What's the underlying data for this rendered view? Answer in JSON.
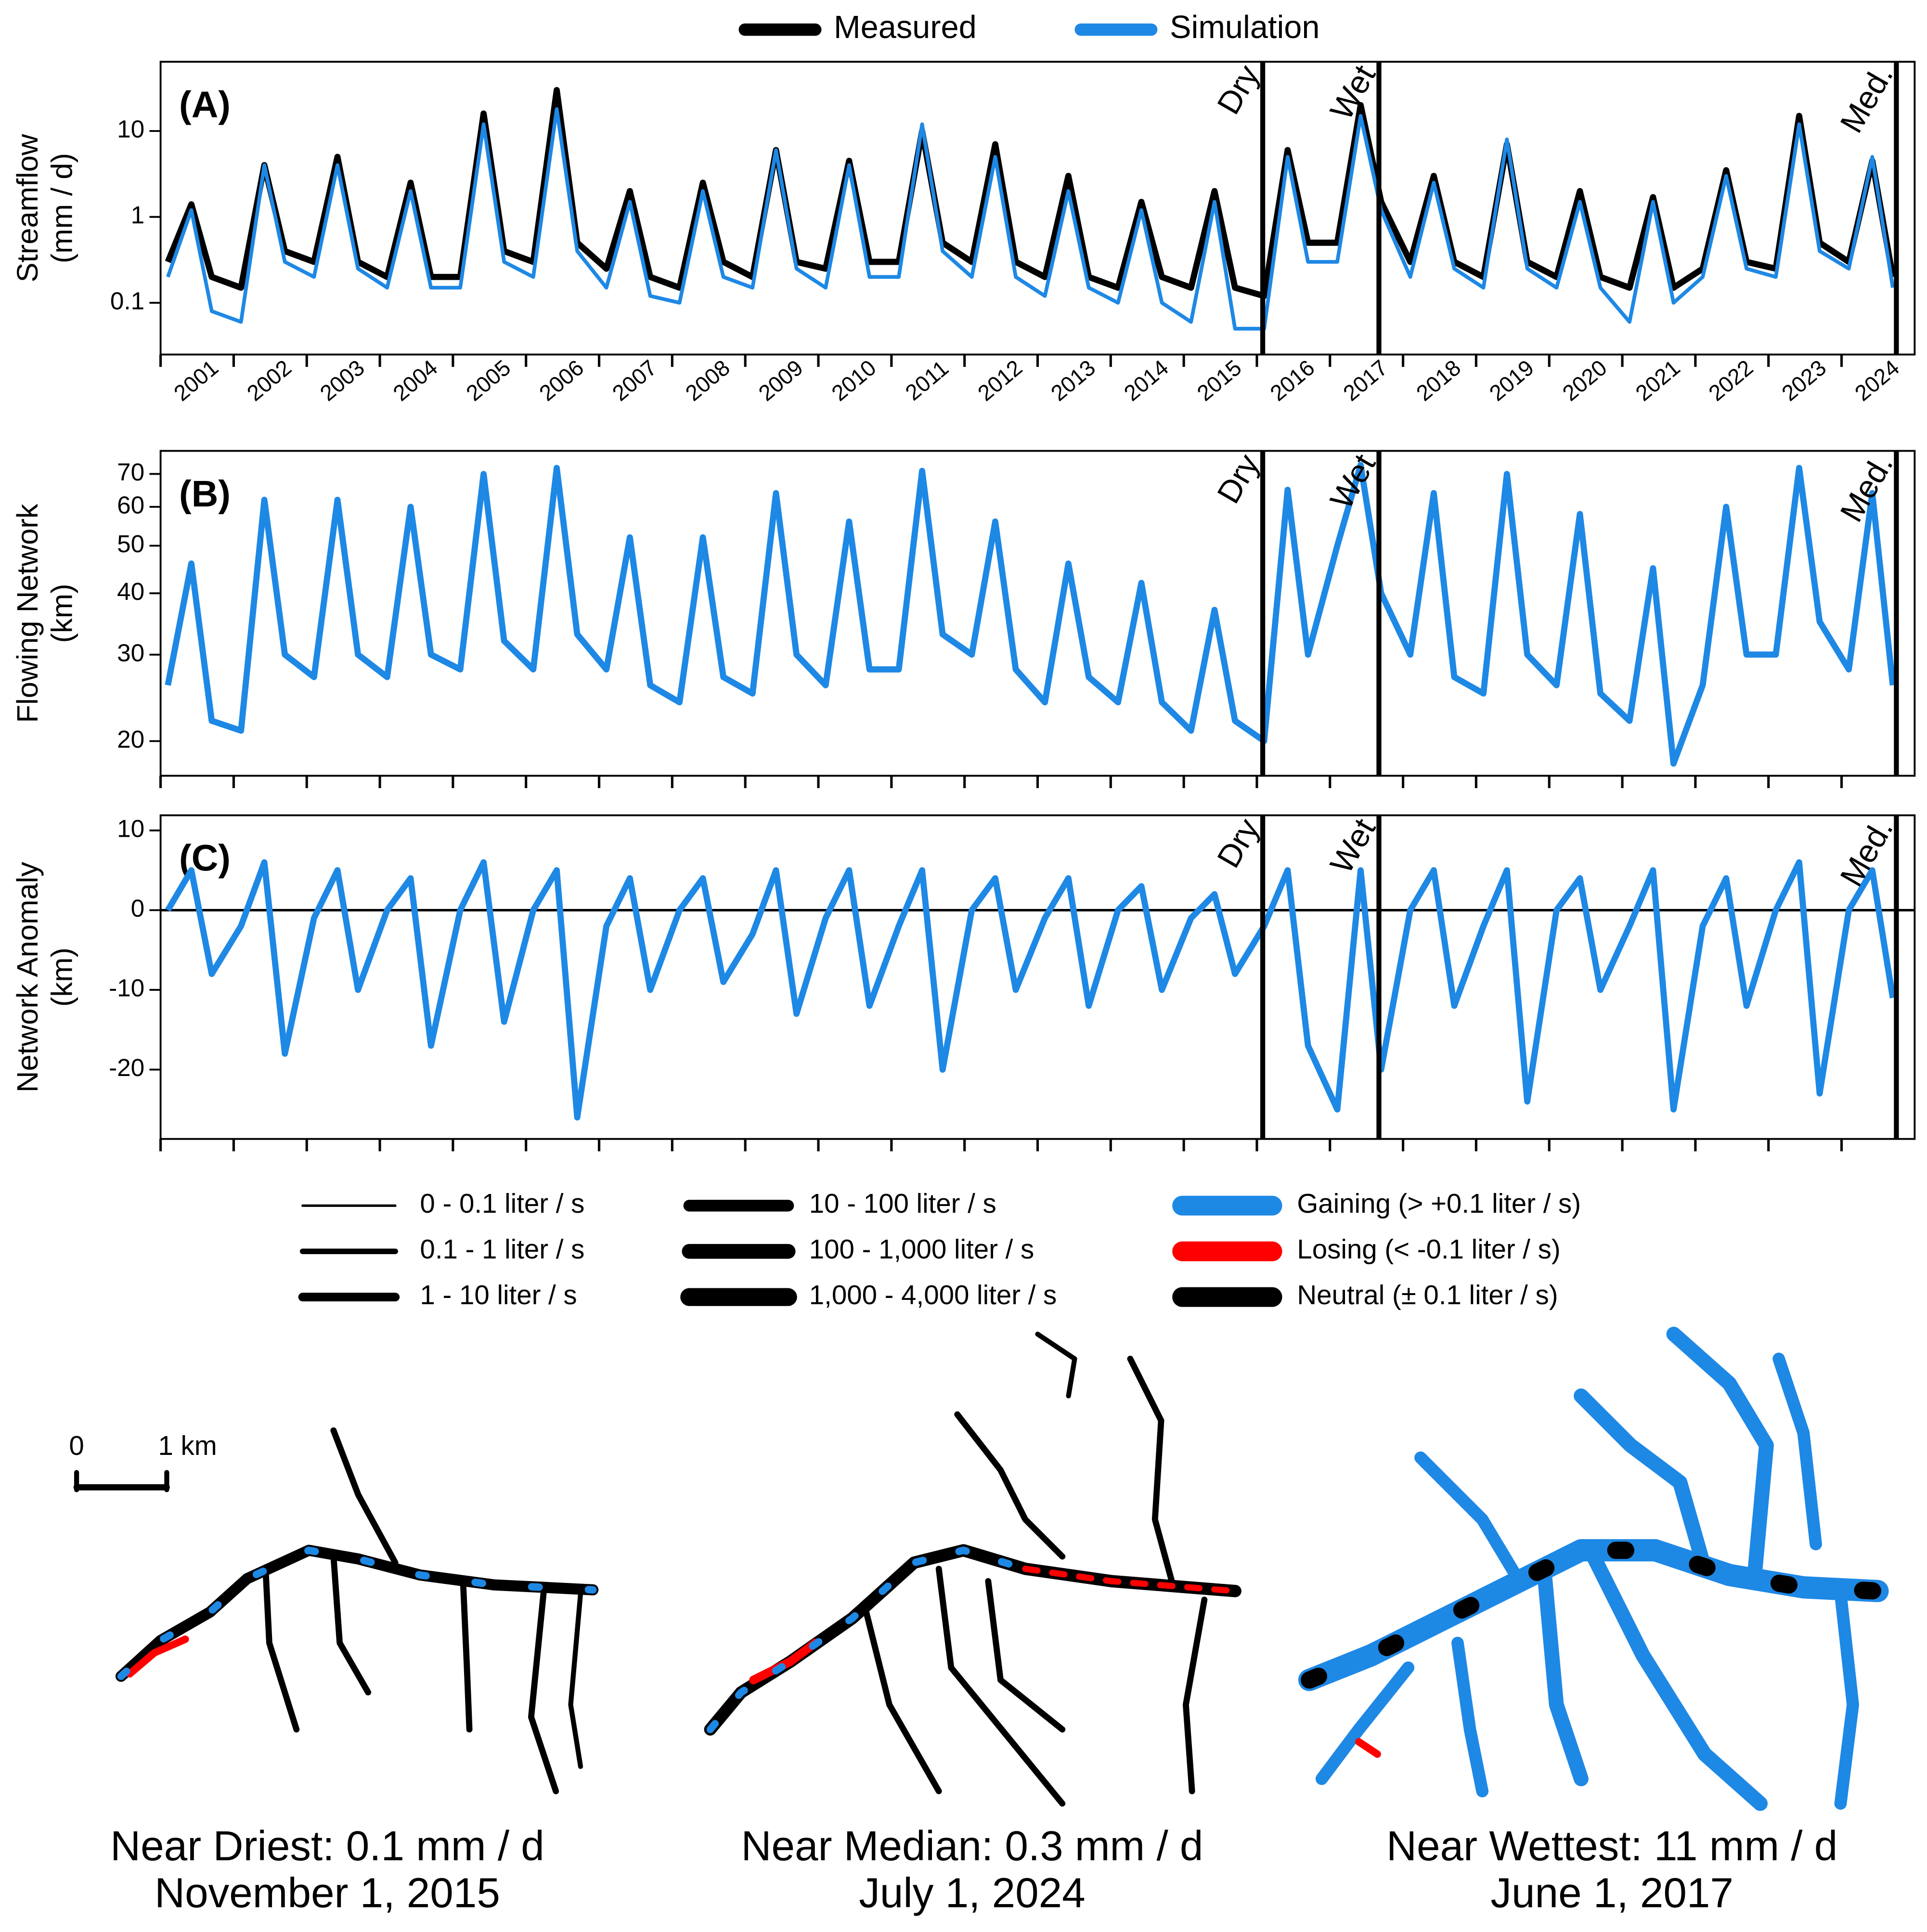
{
  "chart_data": [
    {
      "type": "line",
      "ylog": true,
      "panel_label": "(A)",
      "ylabel": [
        "Streamflow",
        "(mm / d)"
      ],
      "xlim": [
        2000.75,
        2024.75
      ],
      "ylim": [
        0.025,
        64
      ],
      "yticks": [
        {
          "value": 10,
          "label": "10"
        },
        {
          "value": 1,
          "label": "1"
        },
        {
          "value": 0.1,
          "label": "0.1"
        }
      ],
      "xtick_marks": [
        2000.75,
        2001.75,
        2002.75,
        2003.75,
        2004.75,
        2005.75,
        2006.75,
        2007.75,
        2008.75,
        2009.75,
        2010.75,
        2011.75,
        2012.75,
        2013.75,
        2014.75,
        2015.75,
        2016.75,
        2017.75,
        2018.75,
        2019.75,
        2020.75,
        2021.75,
        2022.75,
        2023.75
      ],
      "xticks": [
        {
          "value": 2001.25,
          "label": "2001"
        },
        {
          "value": 2002.25,
          "label": "2002"
        },
        {
          "value": 2003.25,
          "label": "2003"
        },
        {
          "value": 2004.25,
          "label": "2004"
        },
        {
          "value": 2005.25,
          "label": "2005"
        },
        {
          "value": 2006.25,
          "label": "2006"
        },
        {
          "value": 2007.25,
          "label": "2007"
        },
        {
          "value": 2008.25,
          "label": "2008"
        },
        {
          "value": 2009.25,
          "label": "2009"
        },
        {
          "value": 2010.25,
          "label": "2010"
        },
        {
          "value": 2011.25,
          "label": "2011"
        },
        {
          "value": 2012.25,
          "label": "2012"
        },
        {
          "value": 2013.25,
          "label": "2013"
        },
        {
          "value": 2014.25,
          "label": "2014"
        },
        {
          "value": 2015.25,
          "label": "2015"
        },
        {
          "value": 2016.25,
          "label": "2016"
        },
        {
          "value": 2017.25,
          "label": "2017"
        },
        {
          "value": 2018.25,
          "label": "2018"
        },
        {
          "value": 2019.25,
          "label": "2019"
        },
        {
          "value": 2020.25,
          "label": "2020"
        },
        {
          "value": 2021.25,
          "label": "2021"
        },
        {
          "value": 2022.25,
          "label": "2022"
        },
        {
          "value": 2023.25,
          "label": "2023"
        },
        {
          "value": 2024.25,
          "label": "2024"
        }
      ],
      "markers": [
        {
          "label": "Dry",
          "x": 2015.83
        },
        {
          "label": "Wet",
          "x": 2017.42
        },
        {
          "label": "Med.",
          "x": 2024.5
        }
      ],
      "x": [
        2000.85,
        2001.17,
        2001.45,
        2001.85,
        2002.17,
        2002.45,
        2002.85,
        2003.17,
        2003.45,
        2003.85,
        2004.17,
        2004.45,
        2004.85,
        2005.17,
        2005.45,
        2005.85,
        2006.17,
        2006.45,
        2006.85,
        2007.17,
        2007.45,
        2007.85,
        2008.17,
        2008.45,
        2008.85,
        2009.17,
        2009.45,
        2009.85,
        2010.17,
        2010.45,
        2010.85,
        2011.17,
        2011.45,
        2011.85,
        2012.17,
        2012.45,
        2012.85,
        2013.17,
        2013.45,
        2013.85,
        2014.17,
        2014.45,
        2014.85,
        2015.17,
        2015.45,
        2015.85,
        2016.17,
        2016.45,
        2016.85,
        2017.17,
        2017.45,
        2017.85,
        2018.17,
        2018.45,
        2018.85,
        2019.17,
        2019.45,
        2019.85,
        2020.17,
        2020.45,
        2020.85,
        2021.17,
        2021.45,
        2021.85,
        2022.17,
        2022.45,
        2022.85,
        2023.17,
        2023.45,
        2023.85,
        2024.17,
        2024.45
      ],
      "series": [
        {
          "name": "Measured",
          "color": "#000000",
          "values": [
            0.3,
            1.4,
            0.2,
            0.15,
            4,
            0.4,
            0.3,
            5,
            0.3,
            0.2,
            2.5,
            0.2,
            0.2,
            16,
            0.4,
            0.3,
            30,
            0.5,
            0.25,
            2,
            0.2,
            0.15,
            2.5,
            0.3,
            0.2,
            6,
            0.3,
            0.25,
            4.5,
            0.3,
            0.3,
            10,
            0.5,
            0.3,
            7,
            0.3,
            0.2,
            3,
            0.2,
            0.15,
            1.5,
            0.2,
            0.15,
            2,
            0.15,
            0.12,
            6,
            0.5,
            0.5,
            20,
            1.5,
            0.3,
            3,
            0.3,
            0.2,
            7,
            0.3,
            0.2,
            2,
            0.2,
            0.15,
            1.7,
            0.15,
            0.25,
            3.5,
            0.3,
            0.25,
            15,
            0.5,
            0.3,
            4.5,
            0.2
          ]
        },
        {
          "name": "Simulation",
          "color": "#1e88e5",
          "values": [
            0.2,
            1.2,
            0.08,
            0.06,
            4,
            0.3,
            0.2,
            4,
            0.25,
            0.15,
            2,
            0.15,
            0.15,
            12,
            0.3,
            0.2,
            18,
            0.4,
            0.15,
            1.5,
            0.12,
            0.1,
            2,
            0.2,
            0.15,
            6,
            0.25,
            0.15,
            4,
            0.2,
            0.2,
            12,
            0.4,
            0.2,
            5,
            0.2,
            0.12,
            2,
            0.15,
            0.1,
            1.2,
            0.1,
            0.06,
            1.5,
            0.05,
            0.05,
            5,
            0.3,
            0.3,
            15,
            1.2,
            0.2,
            2.5,
            0.25,
            0.15,
            8,
            0.25,
            0.15,
            1.5,
            0.15,
            0.06,
            1.5,
            0.1,
            0.2,
            3,
            0.25,
            0.2,
            12,
            0.4,
            0.25,
            5,
            0.15
          ]
        }
      ]
    },
    {
      "type": "line",
      "ylog": true,
      "panel_label": "(B)",
      "ylabel": [
        "Flowing Network",
        "(km)"
      ],
      "xlim": [
        2000.75,
        2024.75
      ],
      "ylim": [
        17,
        78
      ],
      "yticks": [
        20,
        30,
        40,
        50,
        60,
        70
      ],
      "xtick_marks": [
        2000.75,
        2001.75,
        2002.75,
        2003.75,
        2004.75,
        2005.75,
        2006.75,
        2007.75,
        2008.75,
        2009.75,
        2010.75,
        2011.75,
        2012.75,
        2013.75,
        2014.75,
        2015.75,
        2016.75,
        2017.75,
        2018.75,
        2019.75,
        2020.75,
        2021.75,
        2022.75,
        2023.75
      ],
      "markers": [
        {
          "label": "Dry",
          "x": 2015.83
        },
        {
          "label": "Wet",
          "x": 2017.42
        },
        {
          "label": "Med.",
          "x": 2024.5
        }
      ],
      "x": [
        2000.85,
        2001.17,
        2001.45,
        2001.85,
        2002.17,
        2002.45,
        2002.85,
        2003.17,
        2003.45,
        2003.85,
        2004.17,
        2004.45,
        2004.85,
        2005.17,
        2005.45,
        2005.85,
        2006.17,
        2006.45,
        2006.85,
        2007.17,
        2007.45,
        2007.85,
        2008.17,
        2008.45,
        2008.85,
        2009.17,
        2009.45,
        2009.85,
        2010.17,
        2010.45,
        2010.85,
        2011.17,
        2011.45,
        2011.85,
        2012.17,
        2012.45,
        2012.85,
        2013.17,
        2013.45,
        2013.85,
        2014.17,
        2014.45,
        2014.85,
        2015.17,
        2015.45,
        2015.85,
        2016.17,
        2016.45,
        2016.85,
        2017.17,
        2017.45,
        2017.85,
        2018.17,
        2018.45,
        2018.85,
        2019.17,
        2019.45,
        2019.85,
        2020.17,
        2020.45,
        2020.85,
        2021.17,
        2021.45,
        2021.85,
        2022.17,
        2022.45,
        2022.85,
        2023.17,
        2023.45,
        2023.85,
        2024.17,
        2024.45
      ],
      "series": [
        {
          "color": "#1e88e5",
          "values": [
            26,
            46,
            22,
            21,
            62,
            30,
            27,
            62,
            30,
            27,
            60,
            30,
            28,
            70,
            32,
            28,
            72,
            33,
            28,
            52,
            26,
            24,
            52,
            27,
            25,
            64,
            30,
            26,
            56,
            28,
            28,
            71,
            33,
            30,
            56,
            28,
            24,
            46,
            27,
            24,
            42,
            24,
            21,
            37,
            22,
            20,
            65,
            30,
            50,
            73,
            40,
            30,
            64,
            27,
            25,
            70,
            30,
            26,
            58,
            25,
            22,
            45,
            18,
            26,
            60,
            30,
            30,
            72,
            35,
            28,
            64,
            26
          ]
        }
      ]
    },
    {
      "type": "line",
      "ylog": false,
      "panel_label": "(C)",
      "ylabel": [
        "Network Anomaly",
        "(km)"
      ],
      "xlim": [
        2000.75,
        2024.75
      ],
      "ylim": [
        -28.7,
        11.9
      ],
      "yticks": [
        10,
        0,
        -10,
        -20
      ],
      "xtick_marks": [
        2000.75,
        2001.75,
        2002.75,
        2003.75,
        2004.75,
        2005.75,
        2006.75,
        2007.75,
        2008.75,
        2009.75,
        2010.75,
        2011.75,
        2012.75,
        2013.75,
        2014.75,
        2015.75,
        2016.75,
        2017.75,
        2018.75,
        2019.75,
        2020.75,
        2021.75,
        2022.75,
        2023.75
      ],
      "markers": [
        {
          "label": "Dry",
          "x": 2015.83
        },
        {
          "label": "Wet",
          "x": 2017.42
        },
        {
          "label": "Med.",
          "x": 2024.5
        }
      ],
      "x": [
        2000.85,
        2001.17,
        2001.45,
        2001.85,
        2002.17,
        2002.45,
        2002.85,
        2003.17,
        2003.45,
        2003.85,
        2004.17,
        2004.45,
        2004.85,
        2005.17,
        2005.45,
        2005.85,
        2006.17,
        2006.45,
        2006.85,
        2007.17,
        2007.45,
        2007.85,
        2008.17,
        2008.45,
        2008.85,
        2009.17,
        2009.45,
        2009.85,
        2010.17,
        2010.45,
        2010.85,
        2011.17,
        2011.45,
        2011.85,
        2012.17,
        2012.45,
        2012.85,
        2013.17,
        2013.45,
        2013.85,
        2014.17,
        2014.45,
        2014.85,
        2015.17,
        2015.45,
        2015.85,
        2016.17,
        2016.45,
        2016.85,
        2017.17,
        2017.45,
        2017.85,
        2018.17,
        2018.45,
        2018.85,
        2019.17,
        2019.45,
        2019.85,
        2020.17,
        2020.45,
        2020.85,
        2021.17,
        2021.45,
        2021.85,
        2022.17,
        2022.45,
        2022.85,
        2023.17,
        2023.45,
        2023.85,
        2024.17,
        2024.45
      ],
      "series": [
        {
          "color": "#1e88e5",
          "values": [
            0,
            5,
            -8,
            -2,
            6,
            -18,
            -1,
            5,
            -10,
            0,
            4,
            -17,
            0,
            6,
            -14,
            0,
            5,
            -26,
            -2,
            4,
            -10,
            0,
            4,
            -9,
            -3,
            5,
            -13,
            -1,
            5,
            -12,
            -2,
            5,
            -20,
            0,
            4,
            -10,
            -1,
            4,
            -12,
            0,
            3,
            -10,
            -1,
            2,
            -8,
            -2,
            5,
            -17,
            -25,
            5,
            -20,
            0,
            5,
            -12,
            -2,
            5,
            -24,
            0,
            4,
            -10,
            -2,
            5,
            -25,
            -2,
            4,
            -12,
            0,
            6,
            -23,
            0,
            5,
            -11
          ]
        }
      ]
    }
  ],
  "map_legend": {
    "flow_classes": [
      "0 - 0.1 liter / s",
      "0.1 - 1 liter / s",
      "1 - 10 liter / s",
      "10 - 100 liter / s",
      "100 - 1,000 liter / s",
      "1,000 - 4,000 liter / s"
    ],
    "exchange_classes": [
      {
        "label": "Gaining (> +0.1 liter / s)",
        "color": "#1e88e5"
      },
      {
        "label": "Losing (< -0.1 liter / s)",
        "color": "#ff0000"
      },
      {
        "label": "Neutral (± 0.1 liter / s)",
        "color": "#000000"
      }
    ]
  },
  "scale_bar": {
    "start": "0",
    "end": "1 km"
  },
  "maps": [
    {
      "title": "Near Driest: 0.1 mm / d",
      "date": "November 1, 2015"
    },
    {
      "title": "Near Median: 0.3 mm / d",
      "date": "July 1, 2024"
    },
    {
      "title": "Near Wettest: 11 mm / d",
      "date": "June 1, 2017"
    }
  ]
}
